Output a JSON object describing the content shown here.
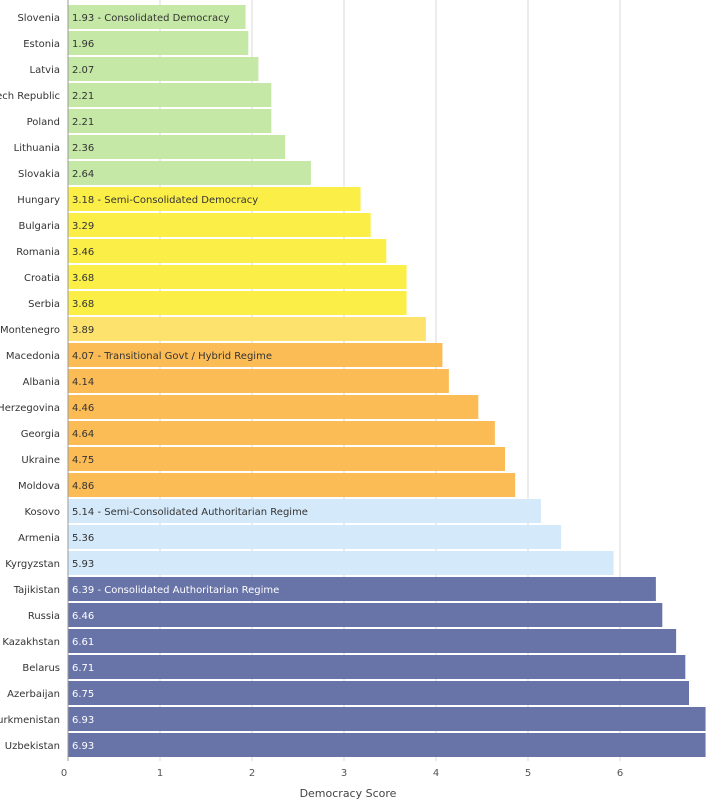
{
  "chart_data": {
    "type": "bar",
    "orientation": "horizontal",
    "xlabel": "Democracy Score",
    "xlim": [
      0,
      7
    ],
    "x_ticks": [
      "0",
      "1",
      "2",
      "3",
      "4",
      "5",
      "6"
    ],
    "grid": true,
    "categories": [
      "Slovenia",
      "Estonia",
      "Latvia",
      "Czech Republic",
      "Poland",
      "Lithuania",
      "Slovakia",
      "Hungary",
      "Bulgaria",
      "Romania",
      "Croatia",
      "Serbia",
      "Montenegro",
      "Macedonia",
      "Albania",
      "Bosnia-Herzegovina",
      "Georgia",
      "Ukraine",
      "Moldova",
      "Kosovo",
      "Armenia",
      "Kyrgyzstan",
      "Tajikistan",
      "Russia",
      "Kazakhstan",
      "Belarus",
      "Azerbaijan",
      "Turkmenistan",
      "Uzbekistan"
    ],
    "values": [
      1.93,
      1.96,
      2.07,
      2.21,
      2.21,
      2.36,
      2.64,
      3.18,
      3.29,
      3.46,
      3.68,
      3.68,
      3.89,
      4.07,
      4.14,
      4.46,
      4.64,
      4.75,
      4.86,
      5.14,
      5.36,
      5.93,
      6.39,
      6.46,
      6.61,
      6.71,
      6.75,
      6.93,
      6.93
    ],
    "data_labels": [
      "1.93 - Consolidated Democracy",
      "1.96",
      "2.07",
      "2.21",
      "2.21",
      "2.36",
      "2.64",
      "3.18 - Semi-Consolidated Democracy",
      "3.29",
      "3.46",
      "3.68",
      "3.68",
      "3.89",
      "4.07 - Transitional Govt / Hybrid Regime",
      "4.14",
      "4.46",
      "4.64",
      "4.75",
      "4.86",
      "5.14 - Semi-Consolidated Authoritarian Regime",
      "5.36",
      "5.93",
      "6.39 - Consolidated Authoritarian Regime",
      "6.46",
      "6.61",
      "6.71",
      "6.75",
      "6.93",
      "6.93"
    ],
    "colors": [
      "#c5e8a6",
      "#c5e8a6",
      "#c5e8a6",
      "#c5e8a6",
      "#c5e8a6",
      "#c5e8a6",
      "#c5e8a6",
      "#fbef47",
      "#fbef47",
      "#fbef47",
      "#fbef47",
      "#fbef47",
      "#fde36e",
      "#fcbc55",
      "#fcbc55",
      "#fcbc55",
      "#fcbc55",
      "#fcbc55",
      "#fcbc55",
      "#d4e9fa",
      "#d4e9fa",
      "#d4e9fa",
      "#6873a8",
      "#6873a8",
      "#6873a8",
      "#6873a8",
      "#6873a8",
      "#6873a8",
      "#6873a8"
    ],
    "dark_bars": [
      false,
      false,
      false,
      false,
      false,
      false,
      false,
      false,
      false,
      false,
      false,
      false,
      false,
      false,
      false,
      false,
      false,
      false,
      false,
      false,
      false,
      false,
      true,
      true,
      true,
      true,
      true,
      true,
      true
    ]
  }
}
